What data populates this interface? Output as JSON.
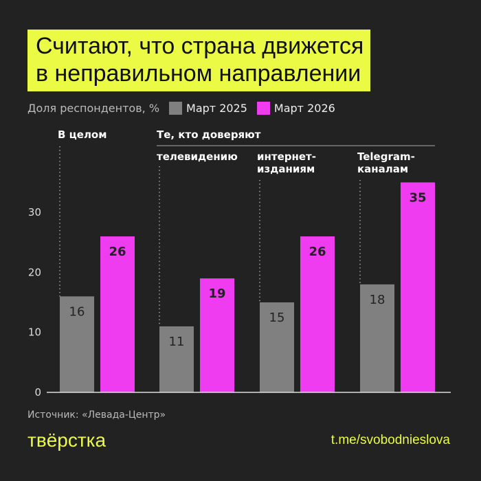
{
  "title_lines": [
    "Считают, что страна движется",
    "в неправильном направлении"
  ],
  "chart_data": {
    "type": "bar",
    "ylabel": "Доля респондентов, %",
    "ylim": [
      0,
      40
    ],
    "yticks": [
      0,
      10,
      20,
      30
    ],
    "grid": false,
    "legend_placement": "top-left",
    "group_headers": {
      "overall": "В целом",
      "trust": "Те, кто доверяют"
    },
    "categories": [
      "В целом",
      "телевидению",
      "интернет-изданиям",
      "Telegram-каналам"
    ],
    "category_label_lines": [
      [
        "В целом"
      ],
      [
        "телевидению"
      ],
      [
        "интернет-",
        "изданиям"
      ],
      [
        "Telegram-",
        "каналам"
      ]
    ],
    "series": [
      {
        "name": "Март 2025",
        "color": "#808080",
        "values": [
          16,
          11,
          15,
          18
        ]
      },
      {
        "name": "Март 2026",
        "color": "#f03cf0",
        "values": [
          26,
          19,
          26,
          35
        ]
      }
    ]
  },
  "source": "Источник: «Левада-Центр»",
  "logo": "твёрстка",
  "link": "t.me/svobodnieslova"
}
